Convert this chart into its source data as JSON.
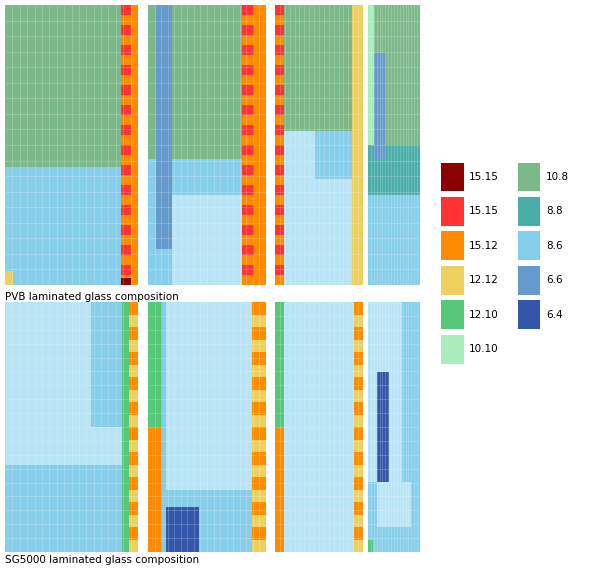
{
  "legend_items_left": [
    {
      "label": "15.15",
      "color": "#8B0000"
    },
    {
      "label": "15.15",
      "color": "#FF3333"
    },
    {
      "label": "15.12",
      "color": "#FF8C00"
    },
    {
      "label": "12.12",
      "color": "#EDD060"
    },
    {
      "label": "12.10",
      "color": "#55C87A"
    },
    {
      "label": "10.10",
      "color": "#A8EDBB"
    }
  ],
  "legend_items_right": [
    {
      "label": "10.8",
      "color": "#7DB88A"
    },
    {
      "label": "8.8",
      "color": "#4AADA8"
    },
    {
      "label": "8.6",
      "color": "#87CEEB"
    },
    {
      "label": "6.6",
      "color": "#6699CC"
    },
    {
      "label": "6.4",
      "color": "#3355AA"
    }
  ],
  "label_pvb": "PVB laminated glass composition",
  "label_sg": "SG5000 laminated glass composition",
  "colors": {
    "dark_red": "#8B0000",
    "red": "#FF3333",
    "orange": "#FF8C00",
    "yellow": "#EDD060",
    "green": "#55C87A",
    "lt_green": "#A8EDBB",
    "sage": "#7DB88A",
    "teal": "#4AADA8",
    "sky": "#87CEEB",
    "lt_sky": "#B8E4F5",
    "steel": "#6699CC",
    "blue": "#3355AA"
  }
}
